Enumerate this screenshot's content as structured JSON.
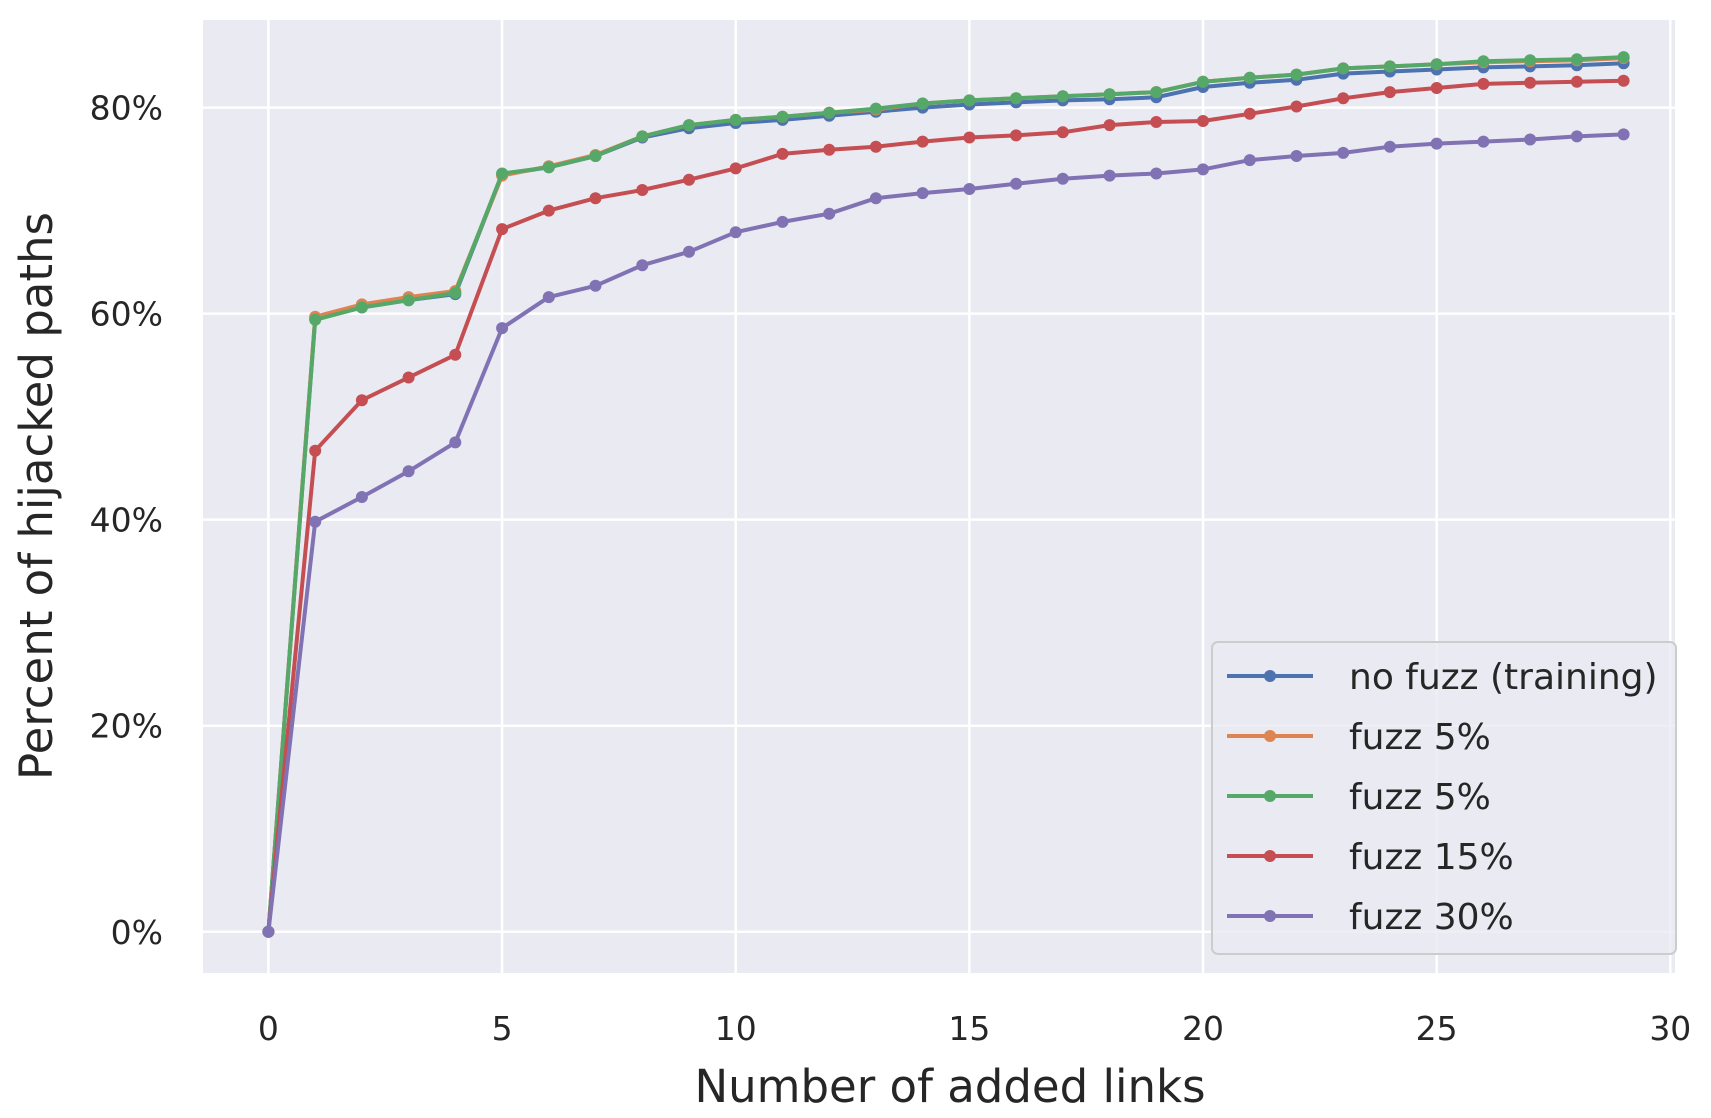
{
  "chart_data": {
    "type": "line",
    "title": "",
    "xlabel": "Number of added links",
    "ylabel": "Percent of hijacked paths",
    "xlim": [
      -1.4,
      30.1
    ],
    "ylim": [
      -4,
      88.5
    ],
    "x_ticks": [
      0,
      5,
      10,
      15,
      20,
      25,
      30
    ],
    "x_tick_labels": [
      "0",
      "5",
      "10",
      "15",
      "20",
      "25",
      "30"
    ],
    "y_ticks": [
      0,
      20,
      40,
      60,
      80
    ],
    "y_tick_labels": [
      "0%",
      "20%",
      "40%",
      "60%",
      "80%"
    ],
    "grid": true,
    "legend_position": "lower-right",
    "colors": {
      "background": "#EAEAF2",
      "grid": "#FFFFFF"
    },
    "x": [
      0,
      1,
      2,
      3,
      4,
      5,
      6,
      7,
      8,
      9,
      10,
      11,
      12,
      13,
      14,
      15,
      16,
      17,
      18,
      19,
      20,
      21,
      22,
      23,
      24,
      25,
      26,
      27,
      28,
      29
    ],
    "series": [
      {
        "name": "no fuzz (training)",
        "color": "#4C72B0",
        "values": [
          0,
          59.5,
          60.6,
          61.3,
          61.9,
          73.5,
          74.2,
          75.3,
          77.1,
          78,
          78.5,
          78.8,
          79.2,
          79.6,
          80,
          80.3,
          80.5,
          80.7,
          80.8,
          81,
          82,
          82.4,
          82.7,
          83.3,
          83.5,
          83.7,
          83.9,
          84,
          84.1,
          84.3
        ]
      },
      {
        "name": "fuzz 5%",
        "color": "#DD8452",
        "values": [
          0,
          59.7,
          60.9,
          61.6,
          62.2,
          73.4,
          74.3,
          75.4,
          77.2,
          78.3,
          78.8,
          79.1,
          79.5,
          79.8,
          80.4,
          80.7,
          80.9,
          81.1,
          81.3,
          81.5,
          82.5,
          82.9,
          83.2,
          83.8,
          84,
          84.2,
          84.4,
          84.5,
          84.6,
          84.8
        ]
      },
      {
        "name": "fuzz 5%",
        "color": "#55A868",
        "values": [
          0,
          59.4,
          60.6,
          61.3,
          62,
          73.6,
          74.2,
          75.3,
          77.2,
          78.3,
          78.8,
          79.1,
          79.5,
          79.9,
          80.4,
          80.7,
          80.9,
          81.1,
          81.3,
          81.5,
          82.5,
          82.9,
          83.2,
          83.8,
          84,
          84.2,
          84.5,
          84.6,
          84.7,
          84.9
        ]
      },
      {
        "name": "fuzz 15%",
        "color": "#C44E52",
        "values": [
          0,
          46.7,
          51.6,
          53.8,
          56,
          68.2,
          70,
          71.2,
          72,
          73,
          74.1,
          75.5,
          75.9,
          76.2,
          76.7,
          77.1,
          77.3,
          77.6,
          78.3,
          78.6,
          78.7,
          79.4,
          80.1,
          80.9,
          81.5,
          81.9,
          82.3,
          82.4,
          82.5,
          82.6
        ]
      },
      {
        "name": "fuzz 30%",
        "color": "#8172B3",
        "values": [
          0,
          39.8,
          42.2,
          44.7,
          47.5,
          58.6,
          61.6,
          62.7,
          64.7,
          66,
          67.9,
          68.9,
          69.7,
          71.2,
          71.7,
          72.1,
          72.6,
          73.1,
          73.4,
          73.6,
          74,
          74.9,
          75.3,
          75.6,
          76.2,
          76.5,
          76.7,
          76.9,
          77.2,
          77.4
        ]
      }
    ]
  }
}
